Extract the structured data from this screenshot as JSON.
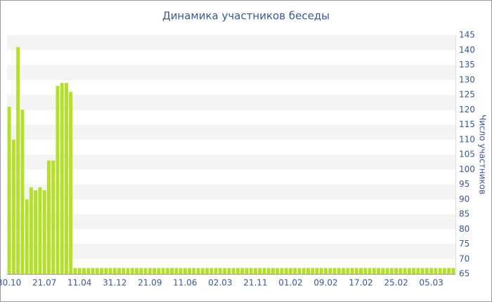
{
  "chart_data": {
    "type": "bar",
    "title": "Динамика участников беседы",
    "y_label": "Число участников",
    "categories": [
      "30.10",
      null,
      null,
      null,
      null,
      null,
      null,
      null,
      "21.07",
      null,
      null,
      null,
      null,
      null,
      null,
      null,
      "11.04",
      null,
      null,
      null,
      null,
      null,
      null,
      null,
      "31.12",
      null,
      null,
      null,
      null,
      null,
      null,
      null,
      "21.09",
      null,
      null,
      null,
      null,
      null,
      null,
      null,
      "11.06",
      null,
      null,
      null,
      null,
      null,
      null,
      null,
      "02.03",
      null,
      null,
      null,
      null,
      null,
      null,
      null,
      "21.11",
      null,
      null,
      null,
      null,
      null,
      null,
      null,
      "01.02",
      null,
      null,
      null,
      null,
      null,
      null,
      null,
      "09.02",
      null,
      null,
      null,
      null,
      null,
      null,
      null,
      "17.02",
      null,
      null,
      null,
      null,
      null,
      null,
      null,
      "25.02",
      null,
      null,
      null,
      null,
      null,
      null,
      null,
      "05.03",
      null,
      null,
      null,
      null,
      null
    ],
    "values": [
      121,
      110,
      141,
      120,
      90,
      94,
      93,
      94,
      93,
      103,
      103,
      128,
      129,
      129,
      126,
      67,
      67,
      67,
      67,
      67,
      67,
      67,
      67,
      67,
      67,
      67,
      67,
      67,
      67,
      67,
      67,
      67,
      67,
      67,
      67,
      67,
      67,
      67,
      67,
      67,
      67,
      67,
      67,
      67,
      67,
      67,
      67,
      67,
      67,
      67,
      67,
      67,
      67,
      67,
      67,
      67,
      67,
      67,
      67,
      67,
      67,
      67,
      67,
      67,
      67,
      67,
      67,
      67,
      67,
      67,
      67,
      67,
      67,
      67,
      67,
      67,
      67,
      67,
      67,
      67,
      67,
      67,
      67,
      67,
      67,
      67,
      67,
      67,
      67,
      67,
      67,
      67,
      67,
      67,
      67,
      67,
      67,
      67,
      67,
      67,
      67,
      67
    ],
    "color": "#b5e02a",
    "ylim": [
      65,
      145
    ],
    "yticks": [
      65,
      70,
      75,
      80,
      85,
      90,
      95,
      100,
      105,
      110,
      115,
      120,
      125,
      130,
      135,
      140,
      145
    ],
    "grid": true,
    "y_axis_side": "right"
  }
}
